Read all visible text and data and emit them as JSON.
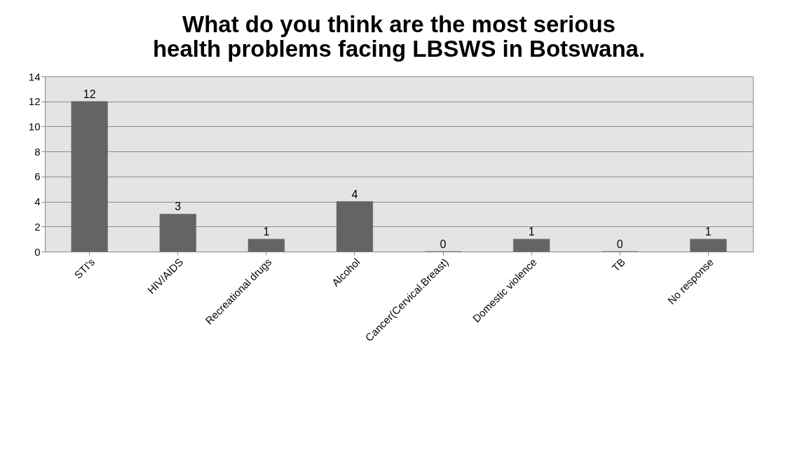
{
  "chart_data": {
    "type": "bar",
    "title": [
      "What do you think are the most serious",
      "health problems facing LBSWS in Botswana."
    ],
    "categories": [
      "STI's",
      "HIV/AIDS",
      "Recreational drugs",
      "Alcohol",
      "Cancer(Cervical.Breast)",
      "Domestic violence",
      "TB",
      "No response"
    ],
    "values": [
      12,
      3,
      1,
      4,
      0,
      1,
      0,
      1
    ],
    "color": "#646464",
    "ylim": [
      0,
      14
    ],
    "yticks": [
      0,
      2,
      4,
      6,
      8,
      10,
      12,
      14
    ],
    "grid": "y",
    "data_labels": true
  }
}
